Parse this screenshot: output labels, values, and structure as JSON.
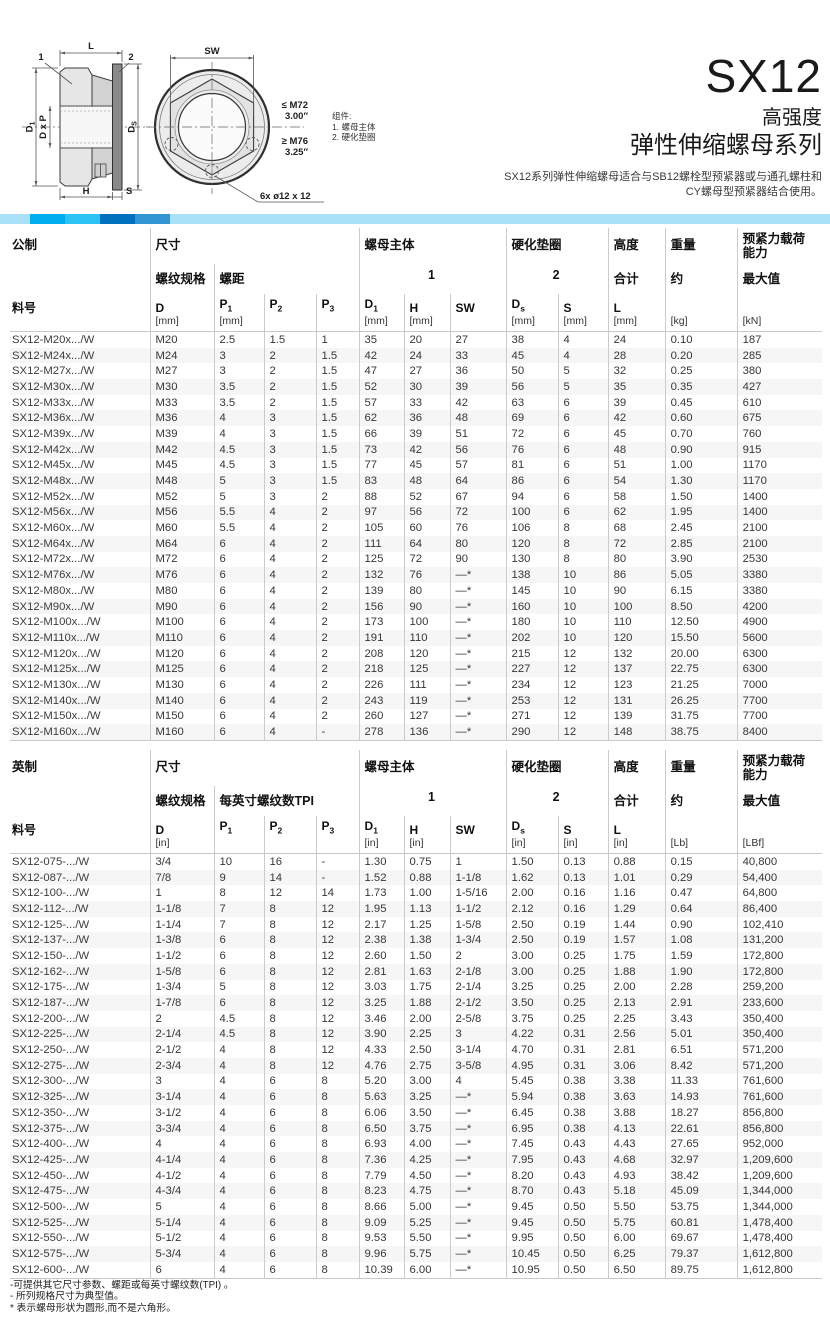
{
  "header": {
    "product": "SX12",
    "grade": "高强度",
    "series": "弹性伸缩螺母系列",
    "desc_line1": "SX12系列弹性伸缩螺母适合与SB12螺栓型预紧器或与通孔螺柱和",
    "desc_line2": "CY螺母型预紧器结合使用。"
  },
  "brand_band": {
    "colors": [
      "#a8e1f8",
      "#00aeef",
      "#2cc3f4",
      "#0071bc",
      "#3295d3",
      "#a8e1f8"
    ]
  },
  "drawing": {
    "dim_l": "L",
    "callout_1": "1",
    "callout_2": "2",
    "dim_d1_main": "D",
    "dim_d1_sub": "1",
    "dim_dxp": "D x P",
    "dim_ds_main": "D",
    "dim_ds_sub": "S",
    "dim_h": "H",
    "dim_s": "S",
    "dim_sw": "SW",
    "range_small": "≤ M72",
    "range_small_in": "3.00″",
    "range_large": "≥ M76",
    "range_large_in": "3.25″",
    "holes": "6x ø12 x 12"
  },
  "legend": {
    "title": "组件:",
    "item1": "1. 螺母主体",
    "item2": "2. 硬化垫圈"
  },
  "tables": {
    "metric": {
      "header_rows": [
        [
          {
            "t": "公制",
            "s": 1
          },
          {
            "t": "尺寸",
            "s": 4
          },
          {
            "t": "螺母主体",
            "s": 3
          },
          {
            "t": "硬化垫圈",
            "s": 2
          },
          {
            "t": "高度",
            "s": 1
          },
          {
            "t": "重量",
            "s": 1
          },
          {
            "t": "预紧力载荷能力",
            "s": 1
          }
        ],
        [
          {
            "t": "",
            "s": 1
          },
          {
            "t": "螺纹规格",
            "s": 1
          },
          {
            "t": "螺距",
            "s": 3
          },
          {
            "t": "1",
            "s": 3
          },
          {
            "t": "2",
            "s": 2
          },
          {
            "t": "合计",
            "s": 1
          },
          {
            "t": "约",
            "s": 1
          },
          {
            "t": "最大值",
            "s": 1
          }
        ],
        [
          {
            "m": "料号"
          },
          {
            "m": "D",
            "u": "[mm]"
          },
          {
            "m": "P",
            "b": "1",
            "u": "[mm]"
          },
          {
            "m": "P",
            "b": "2"
          },
          {
            "m": "P",
            "b": "3"
          },
          {
            "m": "D",
            "b": "1",
            "u": "[mm]"
          },
          {
            "m": "H",
            "u": "[mm]"
          },
          {
            "m": "SW"
          },
          {
            "m": "D",
            "b": "s",
            "u": "[mm]"
          },
          {
            "m": "S",
            "u": "[mm]"
          },
          {
            "m": "L",
            "u": "[mm]"
          },
          {
            "m": "",
            "u": "[kg]"
          },
          {
            "m": "",
            "u": "[kN]"
          }
        ]
      ],
      "rows": [
        [
          "SX12-M20x.../W",
          "M20",
          "2.5",
          "1.5",
          "1",
          "35",
          "20",
          "27",
          "38",
          "4",
          "24",
          "0.10",
          "187"
        ],
        [
          "SX12-M24x.../W",
          "M24",
          "3",
          "2",
          "1.5",
          "42",
          "24",
          "33",
          "45",
          "4",
          "28",
          "0.20",
          "285"
        ],
        [
          "SX12-M27x.../W",
          "M27",
          "3",
          "2",
          "1.5",
          "47",
          "27",
          "36",
          "50",
          "5",
          "32",
          "0.25",
          "380"
        ],
        [
          "SX12-M30x.../W",
          "M30",
          "3.5",
          "2",
          "1.5",
          "52",
          "30",
          "39",
          "56",
          "5",
          "35",
          "0.35",
          "427"
        ],
        [
          "SX12-M33x.../W",
          "M33",
          "3.5",
          "2",
          "1.5",
          "57",
          "33",
          "42",
          "63",
          "6",
          "39",
          "0.45",
          "610"
        ],
        [
          "SX12-M36x.../W",
          "M36",
          "4",
          "3",
          "1.5",
          "62",
          "36",
          "48",
          "69",
          "6",
          "42",
          "0.60",
          "675"
        ],
        [
          "SX12-M39x.../W",
          "M39",
          "4",
          "3",
          "1.5",
          "66",
          "39",
          "51",
          "72",
          "6",
          "45",
          "0.70",
          "760"
        ],
        [
          "SX12-M42x.../W",
          "M42",
          "4.5",
          "3",
          "1.5",
          "73",
          "42",
          "56",
          "76",
          "6",
          "48",
          "0.90",
          "915"
        ],
        [
          "SX12-M45x.../W",
          "M45",
          "4.5",
          "3",
          "1.5",
          "77",
          "45",
          "57",
          "81",
          "6",
          "51",
          "1.00",
          "1170"
        ],
        [
          "SX12-M48x.../W",
          "M48",
          "5",
          "3",
          "1.5",
          "83",
          "48",
          "64",
          "86",
          "6",
          "54",
          "1.30",
          "1170"
        ],
        [
          "SX12-M52x.../W",
          "M52",
          "5",
          "3",
          "2",
          "88",
          "52",
          "67",
          "94",
          "6",
          "58",
          "1.50",
          "1400"
        ],
        [
          "SX12-M56x.../W",
          "M56",
          "5.5",
          "4",
          "2",
          "97",
          "56",
          "72",
          "100",
          "6",
          "62",
          "1.95",
          "1400"
        ],
        [
          "SX12-M60x.../W",
          "M60",
          "5.5",
          "4",
          "2",
          "105",
          "60",
          "76",
          "106",
          "8",
          "68",
          "2.45",
          "2100"
        ],
        [
          "SX12-M64x.../W",
          "M64",
          "6",
          "4",
          "2",
          "111",
          "64",
          "80",
          "120",
          "8",
          "72",
          "2.85",
          "2100"
        ],
        [
          "SX12-M72x.../W",
          "M72",
          "6",
          "4",
          "2",
          "125",
          "72",
          "90",
          "130",
          "8",
          "80",
          "3.90",
          "2530"
        ],
        [
          "SX12-M76x.../W",
          "M76",
          "6",
          "4",
          "2",
          "132",
          "76",
          "—*",
          "138",
          "10",
          "86",
          "5.05",
          "3380"
        ],
        [
          "SX12-M80x.../W",
          "M80",
          "6",
          "4",
          "2",
          "139",
          "80",
          "—*",
          "145",
          "10",
          "90",
          "6.15",
          "3380"
        ],
        [
          "SX12-M90x.../W",
          "M90",
          "6",
          "4",
          "2",
          "156",
          "90",
          "—*",
          "160",
          "10",
          "100",
          "8.50",
          "4200"
        ],
        [
          "SX12-M100x.../W",
          "M100",
          "6",
          "4",
          "2",
          "173",
          "100",
          "—*",
          "180",
          "10",
          "110",
          "12.50",
          "4900"
        ],
        [
          "SX12-M110x.../W",
          "M110",
          "6",
          "4",
          "2",
          "191",
          "110",
          "—*",
          "202",
          "10",
          "120",
          "15.50",
          "5600"
        ],
        [
          "SX12-M120x.../W",
          "M120",
          "6",
          "4",
          "2",
          "208",
          "120",
          "—*",
          "215",
          "12",
          "132",
          "20.00",
          "6300"
        ],
        [
          "SX12-M125x.../W",
          "M125",
          "6",
          "4",
          "2",
          "218",
          "125",
          "—*",
          "227",
          "12",
          "137",
          "22.75",
          "6300"
        ],
        [
          "SX12-M130x.../W",
          "M130",
          "6",
          "4",
          "2",
          "226",
          "111",
          "—*",
          "234",
          "12",
          "123",
          "21.25",
          "7000"
        ],
        [
          "SX12-M140x.../W",
          "M140",
          "6",
          "4",
          "2",
          "243",
          "119",
          "—*",
          "253",
          "12",
          "131",
          "26.25",
          "7700"
        ],
        [
          "SX12-M150x.../W",
          "M150",
          "6",
          "4",
          "2",
          "260",
          "127",
          "—*",
          "271",
          "12",
          "139",
          "31.75",
          "7700"
        ],
        [
          "SX12-M160x.../W",
          "M160",
          "6",
          "4",
          "-",
          "278",
          "136",
          "—*",
          "290",
          "12",
          "148",
          "38.75",
          "8400"
        ]
      ]
    },
    "imperial": {
      "header_rows": [
        [
          {
            "t": "英制",
            "s": 1
          },
          {
            "t": "尺寸",
            "s": 4
          },
          {
            "t": "螺母主体",
            "s": 3
          },
          {
            "t": "硬化垫圈",
            "s": 2
          },
          {
            "t": "高度",
            "s": 1
          },
          {
            "t": "重量",
            "s": 1
          },
          {
            "t": "预紧力载荷能力",
            "s": 1
          }
        ],
        [
          {
            "t": "",
            "s": 1
          },
          {
            "t": "螺纹规格",
            "s": 1
          },
          {
            "t": "每英寸螺纹数TPI",
            "s": 3
          },
          {
            "t": "1",
            "s": 3
          },
          {
            "t": "2",
            "s": 2
          },
          {
            "t": "合计",
            "s": 1
          },
          {
            "t": "约",
            "s": 1
          },
          {
            "t": "最大值",
            "s": 1
          }
        ],
        [
          {
            "m": "料号"
          },
          {
            "m": "D",
            "u": "[in]"
          },
          {
            "m": "P",
            "b": "1"
          },
          {
            "m": "P",
            "b": "2"
          },
          {
            "m": "P",
            "b": "3"
          },
          {
            "m": "D",
            "b": "1",
            "u": "[in]"
          },
          {
            "m": "H",
            "u": "[in]"
          },
          {
            "m": "SW"
          },
          {
            "m": "D",
            "b": "s",
            "u": "[in]"
          },
          {
            "m": "S",
            "u": "[in]"
          },
          {
            "m": "L",
            "u": "[in]"
          },
          {
            "m": "",
            "u": "[Lb]"
          },
          {
            "m": "",
            "u": "[LBf]"
          }
        ]
      ],
      "rows": [
        [
          "SX12-075-.../W",
          "3/4",
          "10",
          "16",
          "-",
          "1.30",
          "0.75",
          "1",
          "1.50",
          "0.13",
          "0.88",
          "0.15",
          "40,800"
        ],
        [
          "SX12-087-.../W",
          "7/8",
          "9",
          "14",
          "-",
          "1.52",
          "0.88",
          "1-1/8",
          "1.62",
          "0.13",
          "1.01",
          "0.29",
          "54,400"
        ],
        [
          "SX12-100-.../W",
          "1",
          "8",
          "12",
          "14",
          "1.73",
          "1.00",
          "1-5/16",
          "2.00",
          "0.16",
          "1.16",
          "0.47",
          "64,800"
        ],
        [
          "SX12-112-.../W",
          "1-1/8",
          "7",
          "8",
          "12",
          "1.95",
          "1.13",
          "1-1/2",
          "2.12",
          "0.16",
          "1.29",
          "0.64",
          "86,400"
        ],
        [
          "SX12-125-.../W",
          "1-1/4",
          "7",
          "8",
          "12",
          "2.17",
          "1.25",
          "1-5/8",
          "2.50",
          "0.19",
          "1.44",
          "0.90",
          "102,410"
        ],
        [
          "SX12-137-.../W",
          "1-3/8",
          "6",
          "8",
          "12",
          "2.38",
          "1.38",
          "1-3/4",
          "2.50",
          "0.19",
          "1.57",
          "1.08",
          "131,200"
        ],
        [
          "SX12-150-.../W",
          "1-1/2",
          "6",
          "8",
          "12",
          "2.60",
          "1.50",
          "2",
          "3.00",
          "0.25",
          "1.75",
          "1.59",
          "172,800"
        ],
        [
          "SX12-162-.../W",
          "1-5/8",
          "6",
          "8",
          "12",
          "2.81",
          "1.63",
          "2-1/8",
          "3.00",
          "0.25",
          "1.88",
          "1.90",
          "172,800"
        ],
        [
          "SX12-175-.../W",
          "1-3/4",
          "5",
          "8",
          "12",
          "3.03",
          "1.75",
          "2-1/4",
          "3.25",
          "0.25",
          "2.00",
          "2.28",
          "259,200"
        ],
        [
          "SX12-187-.../W",
          "1-7/8",
          "6",
          "8",
          "12",
          "3.25",
          "1.88",
          "2-1/2",
          "3.50",
          "0.25",
          "2.13",
          "2.91",
          "233,600"
        ],
        [
          "SX12-200-.../W",
          "2",
          "4.5",
          "8",
          "12",
          "3.46",
          "2.00",
          "2-5/8",
          "3.75",
          "0.25",
          "2.25",
          "3.43",
          "350,400"
        ],
        [
          "SX12-225-.../W",
          "2-1/4",
          "4.5",
          "8",
          "12",
          "3.90",
          "2.25",
          "3",
          "4.22",
          "0.31",
          "2.56",
          "5.01",
          "350,400"
        ],
        [
          "SX12-250-.../W",
          "2-1/2",
          "4",
          "8",
          "12",
          "4.33",
          "2.50",
          "3-1/4",
          "4.70",
          "0.31",
          "2.81",
          "6.51",
          "571,200"
        ],
        [
          "SX12-275-.../W",
          "2-3/4",
          "4",
          "8",
          "12",
          "4.76",
          "2.75",
          "3-5/8",
          "4.95",
          "0.31",
          "3.06",
          "8.42",
          "571,200"
        ],
        [
          "SX12-300-.../W",
          "3",
          "4",
          "6",
          "8",
          "5.20",
          "3.00",
          "4",
          "5.45",
          "0.38",
          "3.38",
          "11.33",
          "761,600"
        ],
        [
          "SX12-325-.../W",
          "3-1/4",
          "4",
          "6",
          "8",
          "5.63",
          "3.25",
          "—*",
          "5.94",
          "0.38",
          "3.63",
          "14.93",
          "761,600"
        ],
        [
          "SX12-350-.../W",
          "3-1/2",
          "4",
          "6",
          "8",
          "6.06",
          "3.50",
          "—*",
          "6.45",
          "0.38",
          "3.88",
          "18.27",
          "856,800"
        ],
        [
          "SX12-375-.../W",
          "3-3/4",
          "4",
          "6",
          "8",
          "6.50",
          "3.75",
          "—*",
          "6.95",
          "0.38",
          "4.13",
          "22.61",
          "856,800"
        ],
        [
          "SX12-400-.../W",
          "4",
          "4",
          "6",
          "8",
          "6.93",
          "4.00",
          "—*",
          "7.45",
          "0.43",
          "4.43",
          "27.65",
          "952,000"
        ],
        [
          "SX12-425-.../W",
          "4-1/4",
          "4",
          "6",
          "8",
          "7.36",
          "4.25",
          "—*",
          "7.95",
          "0.43",
          "4.68",
          "32.97",
          "1,209,600"
        ],
        [
          "SX12-450-.../W",
          "4-1/2",
          "4",
          "6",
          "8",
          "7.79",
          "4.50",
          "—*",
          "8.20",
          "0.43",
          "4.93",
          "38.42",
          "1,209,600"
        ],
        [
          "SX12-475-.../W",
          "4-3/4",
          "4",
          "6",
          "8",
          "8.23",
          "4.75",
          "—*",
          "8.70",
          "0.43",
          "5.18",
          "45.09",
          "1,344,000"
        ],
        [
          "SX12-500-.../W",
          "5",
          "4",
          "6",
          "8",
          "8.66",
          "5.00",
          "—*",
          "9.45",
          "0.50",
          "5.50",
          "53.75",
          "1,344,000"
        ],
        [
          "SX12-525-.../W",
          "5-1/4",
          "4",
          "6",
          "8",
          "9.09",
          "5.25",
          "—*",
          "9.45",
          "0.50",
          "5.75",
          "60.81",
          "1,478,400"
        ],
        [
          "SX12-550-.../W",
          "5-1/2",
          "4",
          "6",
          "8",
          "9.53",
          "5.50",
          "—*",
          "9.95",
          "0.50",
          "6.00",
          "69.67",
          "1,478,400"
        ],
        [
          "SX12-575-.../W",
          "5-3/4",
          "4",
          "6",
          "8",
          "9.96",
          "5.75",
          "—*",
          "10.45",
          "0.50",
          "6.25",
          "79.37",
          "1,612,800"
        ],
        [
          "SX12-600-.../W",
          "6",
          "4",
          "6",
          "8",
          "10.39",
          "6.00",
          "—*",
          "10.95",
          "0.50",
          "6.50",
          "89.75",
          "1,612,800"
        ]
      ]
    }
  },
  "footnotes": [
    "-可提供其它尺寸参数、螺距或每英寸螺纹数(TPI) 。",
    "- 所列规格尺寸为典型值。",
    "* 表示螺母形状为圆形,而不是六角形。"
  ]
}
